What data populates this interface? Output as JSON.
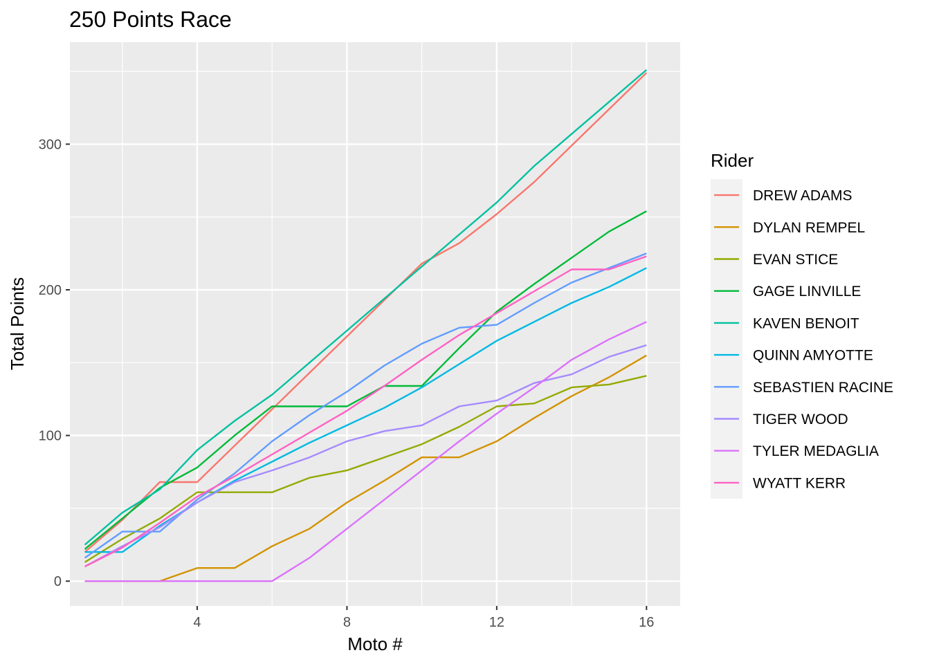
{
  "chart_data": {
    "type": "line",
    "title": "250 Points Race",
    "xlabel": "Moto #",
    "ylabel": "Total Points",
    "xlim": [
      0.6,
      16.9
    ],
    "ylim": [
      -17,
      370
    ],
    "x_ticks": [
      4,
      8,
      12,
      16
    ],
    "x_tick_labels": [
      "4",
      "8",
      "12",
      "16"
    ],
    "x_minor_ticks": [
      2,
      6,
      10,
      14
    ],
    "y_ticks": [
      0,
      100,
      200,
      300
    ],
    "y_tick_labels": [
      "0",
      "100",
      "200",
      "300"
    ],
    "y_minor_ticks": [
      50,
      150,
      250,
      350
    ],
    "grid": true,
    "legend": {
      "title": "Rider",
      "position": "right"
    },
    "x": [
      1,
      2,
      3,
      4,
      5,
      6,
      7,
      8,
      9,
      10,
      11,
      12,
      13,
      14,
      15,
      16
    ],
    "series": [
      {
        "name": "DREW ADAMS",
        "color": "#F8766D",
        "values": [
          20,
          42,
          68,
          68,
          93,
          118,
          143,
          168,
          193,
          218,
          232,
          252,
          274,
          299,
          324,
          349
        ]
      },
      {
        "name": "DYLAN REMPEL",
        "color": "#D39200",
        "values": [
          0,
          0,
          0,
          9,
          9,
          24,
          36,
          54,
          69,
          85,
          85,
          96,
          112,
          127,
          140,
          155
        ]
      },
      {
        "name": "EVAN STICE",
        "color": "#93AA00",
        "values": [
          13,
          29,
          43,
          61,
          61,
          61,
          71,
          76,
          85,
          94,
          106,
          120,
          122,
          133,
          135,
          141
        ]
      },
      {
        "name": "GAGE LINVILLE",
        "color": "#00BA38",
        "values": [
          22,
          43,
          64,
          78,
          100,
          120,
          120,
          120,
          134,
          134,
          160,
          185,
          204,
          222,
          240,
          254
        ]
      },
      {
        "name": "KAVEN BENOIT",
        "color": "#00C19F",
        "values": [
          25,
          47,
          63,
          90,
          110,
          128,
          150,
          172,
          194,
          216,
          238,
          260,
          285,
          307,
          329,
          351
        ]
      },
      {
        "name": "QUINN AMYOTTE",
        "color": "#00B9E3",
        "values": [
          20,
          20,
          38,
          54,
          69,
          82,
          95,
          107,
          119,
          133,
          149,
          165,
          178,
          191,
          202,
          215
        ]
      },
      {
        "name": "SEBASTIEN RACINE",
        "color": "#619CFF",
        "values": [
          16,
          34,
          34,
          56,
          74,
          96,
          114,
          130,
          148,
          163,
          174,
          176,
          191,
          205,
          215,
          225
        ]
      },
      {
        "name": "TIGER WOOD",
        "color": "#A58AFF",
        "values": [
          10,
          24,
          37,
          54,
          68,
          76,
          85,
          96,
          103,
          107,
          120,
          124,
          136,
          142,
          154,
          162
        ]
      },
      {
        "name": "TYLER MEDAGLIA",
        "color": "#DB72FB",
        "values": [
          0,
          0,
          0,
          0,
          0,
          0,
          16,
          36,
          56,
          76,
          96,
          115,
          133,
          152,
          166,
          178
        ]
      },
      {
        "name": "WYATT KERR",
        "color": "#FF61C3",
        "values": [
          10,
          23,
          40,
          58,
          72,
          87,
          102,
          117,
          134,
          152,
          169,
          184,
          199,
          214,
          214,
          223
        ]
      }
    ]
  }
}
